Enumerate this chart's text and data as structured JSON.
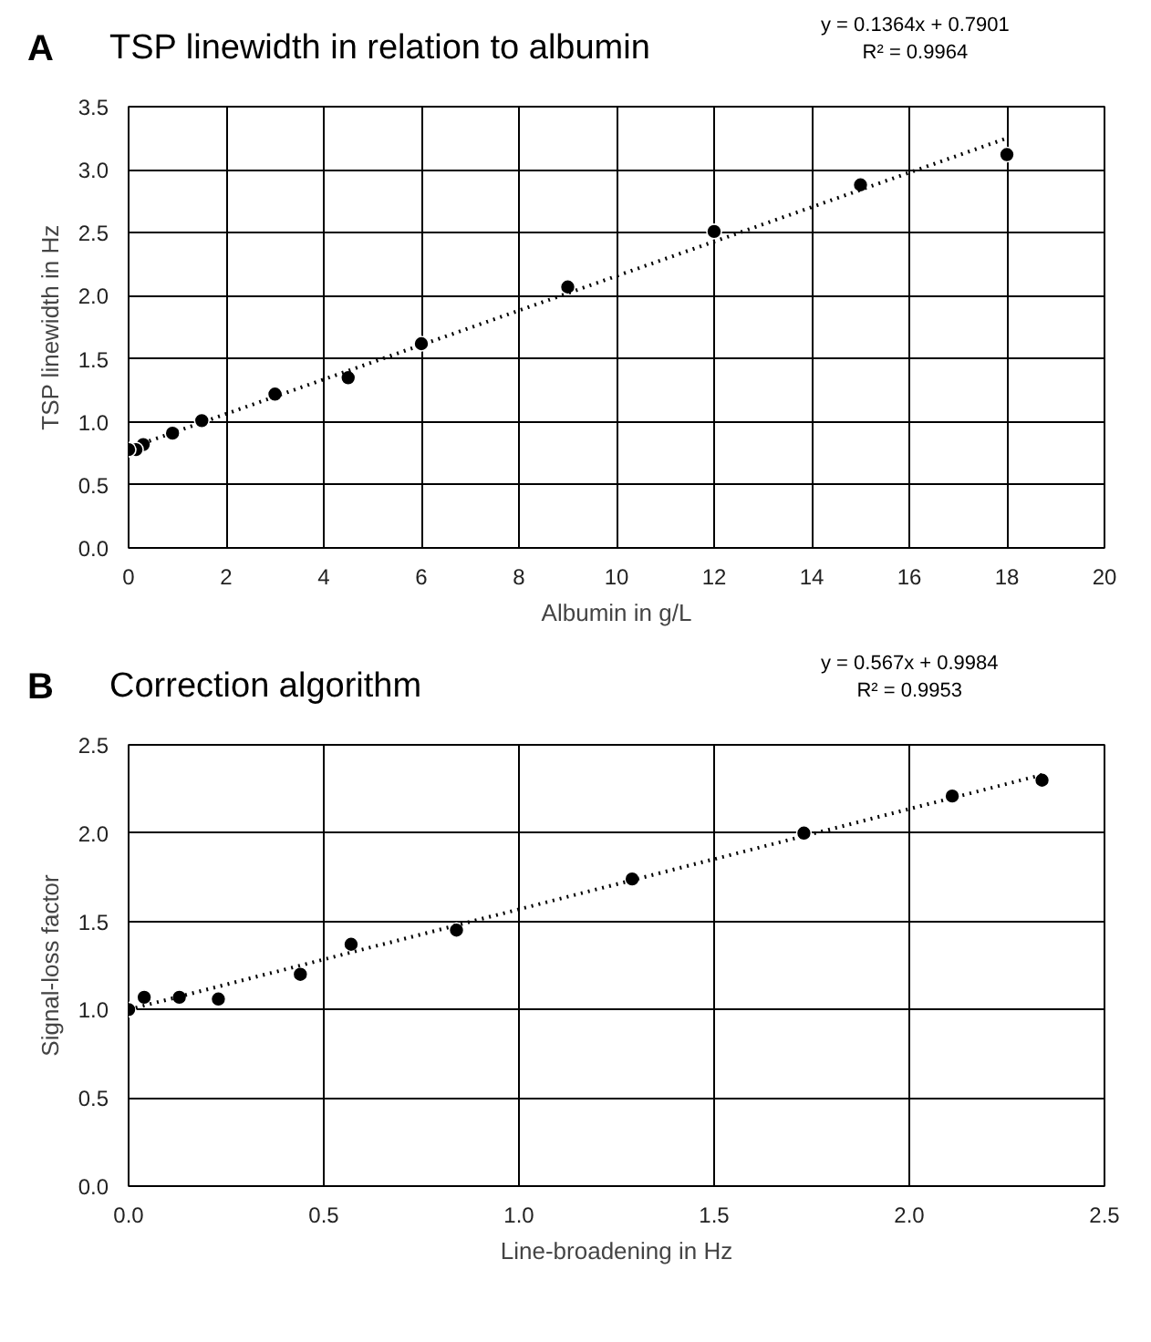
{
  "chart_data": [
    {
      "type": "scatter",
      "title": "TSP linewidth in relation to albumin",
      "xlabel": "Albumin in g/L",
      "ylabel": "TSP linewidth in Hz",
      "annotations": [
        "A",
        "y = 0.1364x + 0.7901",
        "R² = 0.9964"
      ],
      "xlim": [
        0,
        20
      ],
      "ylim": [
        0,
        3.5
      ],
      "xticks": [
        0,
        2,
        4,
        6,
        8,
        10,
        12,
        14,
        16,
        18,
        20
      ],
      "yticks": [
        {
          "value": 0,
          "label": "0.0"
        },
        {
          "value": 0.5,
          "label": "0.5"
        },
        {
          "value": 1,
          "label": "1.0"
        },
        {
          "value": 1.5,
          "label": "1.5"
        },
        {
          "value": 2,
          "label": "2.0"
        },
        {
          "value": 2.5,
          "label": "2.5"
        },
        {
          "value": 3,
          "label": "3.0"
        },
        {
          "value": 3.5,
          "label": "3.5"
        }
      ],
      "grid": true,
      "marker": "circle",
      "series": [
        {
          "color": "#000000",
          "x": [
            0,
            0.15,
            0.3,
            0.9,
            1.5,
            3,
            4.5,
            6,
            9,
            12,
            15,
            18
          ],
          "values": [
            0.78,
            0.78,
            0.82,
            0.91,
            1.01,
            1.22,
            1.35,
            1.62,
            2.07,
            2.51,
            2.88,
            3.12
          ]
        },
        {
          "type": "line",
          "line_style": "dotted",
          "marker": "none",
          "color": "#000000",
          "x": [
            0,
            18
          ],
          "values": [
            0.79,
            3.25
          ]
        }
      ]
    },
    {
      "type": "scatter",
      "title": "Correction algorithm",
      "xlabel": "Line-broadening in Hz",
      "ylabel": "Signal-loss factor",
      "annotations": [
        "B",
        "y = 0.567x + 0.9984",
        "R² = 0.9953"
      ],
      "xlim": [
        0,
        2.5
      ],
      "ylim": [
        0,
        2.5
      ],
      "xticks": [
        {
          "value": 0,
          "label": "0.0"
        },
        {
          "value": 0.5,
          "label": "0.5"
        },
        {
          "value": 1,
          "label": "1.0"
        },
        {
          "value": 1.5,
          "label": "1.5"
        },
        {
          "value": 2,
          "label": "2.0"
        },
        {
          "value": 2.5,
          "label": "2.5"
        }
      ],
      "yticks": [
        {
          "value": 0,
          "label": "0.0"
        },
        {
          "value": 0.5,
          "label": "0.5"
        },
        {
          "value": 1,
          "label": "1.0"
        },
        {
          "value": 1.5,
          "label": "1.5"
        },
        {
          "value": 2,
          "label": "2.0"
        },
        {
          "value": 2.5,
          "label": "2.5"
        }
      ],
      "grid": true,
      "marker": "circle",
      "series": [
        {
          "color": "#000000",
          "x": [
            0,
            0.04,
            0.13,
            0.23,
            0.44,
            0.57,
            0.84,
            1.29,
            1.73,
            2.11,
            2.34
          ],
          "values": [
            1.0,
            1.07,
            1.07,
            1.06,
            1.2,
            1.37,
            1.45,
            1.74,
            2.0,
            2.21,
            2.3
          ]
        },
        {
          "type": "line",
          "line_style": "dotted",
          "marker": "none",
          "color": "#000000",
          "x": [
            0,
            2.34
          ],
          "values": [
            1.0,
            2.33
          ]
        }
      ]
    }
  ]
}
